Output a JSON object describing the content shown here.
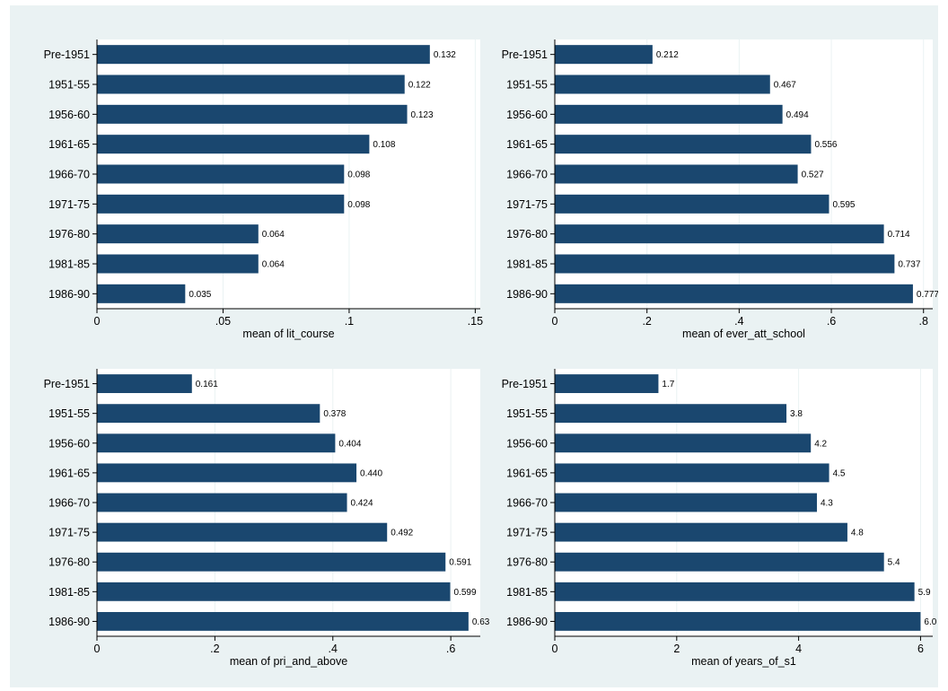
{
  "colors": {
    "bar": "#1a476f",
    "grid": "#eaf2f3",
    "outer_background": "#eaf2f3",
    "plot_background": "#ffffff",
    "axis": "#000000"
  },
  "chart_data": [
    {
      "type": "bar",
      "orientation": "horizontal",
      "categories": [
        "Pre-1951",
        "1951-55",
        "1956-60",
        "1961-65",
        "1966-70",
        "1971-75",
        "1976-80",
        "1981-85",
        "1986-90"
      ],
      "values": [
        0.132,
        0.122,
        0.123,
        0.108,
        0.098,
        0.098,
        0.064,
        0.064,
        0.035
      ],
      "value_labels": [
        "0.132",
        "0.122",
        "0.123",
        "0.108",
        "0.098",
        "0.098",
        "0.064",
        "0.064",
        "0.035"
      ],
      "xlabel": "mean of lit_course",
      "xlim": [
        0,
        0.15
      ],
      "ticks": [
        0,
        0.05,
        0.1,
        0.15
      ],
      "tick_labels": [
        "0",
        ".05",
        ".1",
        ".15"
      ],
      "grid": true
    },
    {
      "type": "bar",
      "orientation": "horizontal",
      "categories": [
        "Pre-1951",
        "1951-55",
        "1956-60",
        "1961-65",
        "1966-70",
        "1971-75",
        "1976-80",
        "1981-85",
        "1986-90"
      ],
      "values": [
        0.212,
        0.467,
        0.494,
        0.556,
        0.527,
        0.595,
        0.714,
        0.737,
        0.777
      ],
      "value_labels": [
        "0.212",
        "0.467",
        "0.494",
        "0.556",
        "0.527",
        "0.595",
        "0.714",
        "0.737",
        "0.777"
      ],
      "xlabel": "mean of ever_att_school",
      "xlim": [
        0,
        0.8
      ],
      "ticks": [
        0,
        0.2,
        0.4,
        0.6,
        0.8
      ],
      "tick_labels": [
        "0",
        ".2",
        ".4",
        ".6",
        ".8"
      ],
      "grid": true
    },
    {
      "type": "bar",
      "orientation": "horizontal",
      "categories": [
        "Pre-1951",
        "1951-55",
        "1956-60",
        "1961-65",
        "1966-70",
        "1971-75",
        "1976-80",
        "1981-85",
        "1986-90"
      ],
      "values": [
        0.161,
        0.378,
        0.404,
        0.44,
        0.424,
        0.492,
        0.591,
        0.599,
        0.63
      ],
      "value_labels": [
        "0.161",
        "0.378",
        "0.404",
        "0.440",
        "0.424",
        "0.492",
        "0.591",
        "0.599",
        "0.63"
      ],
      "xlabel": "mean of pri_and_above",
      "xlim": [
        0,
        0.6
      ],
      "ticks": [
        0,
        0.2,
        0.4,
        0.6
      ],
      "tick_labels": [
        "0",
        ".2",
        ".4",
        ".6"
      ],
      "grid": true
    },
    {
      "type": "bar",
      "orientation": "horizontal",
      "categories": [
        "Pre-1951",
        "1951-55",
        "1956-60",
        "1961-65",
        "1966-70",
        "1971-75",
        "1976-80",
        "1981-85",
        "1986-90"
      ],
      "values": [
        1.7,
        3.8,
        4.2,
        4.5,
        4.3,
        4.8,
        5.4,
        5.9,
        6.0
      ],
      "value_labels": [
        "1.7",
        "3.8",
        "4.2",
        "4.5",
        "4.3",
        "4.8",
        "5.4",
        "5.9",
        "6.0"
      ],
      "xlabel": "mean of years_of_s1",
      "xlim": [
        0,
        6
      ],
      "ticks": [
        0,
        2,
        4,
        6
      ],
      "tick_labels": [
        "0",
        "2",
        "4",
        "6"
      ],
      "grid": true
    }
  ]
}
